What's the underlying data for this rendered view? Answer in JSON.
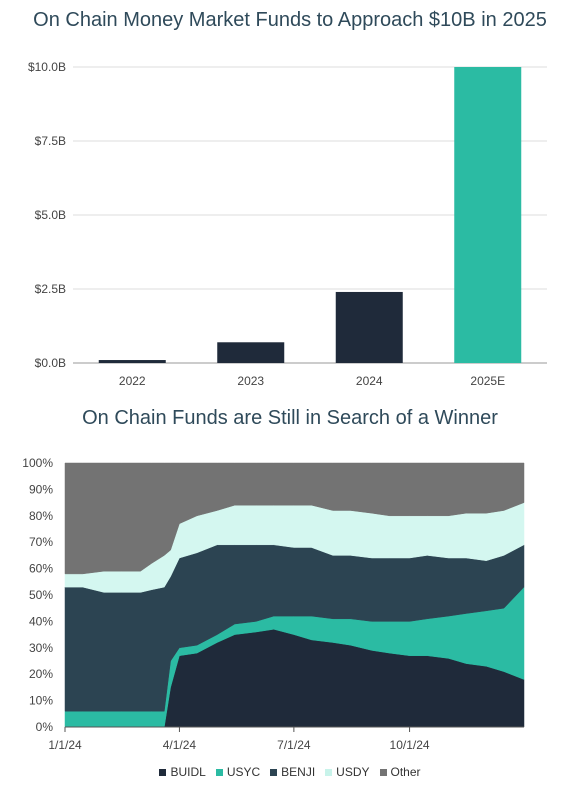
{
  "chart_data": [
    {
      "type": "bar",
      "title": "On Chain Money Market Funds to Approach $10B in 2025",
      "categories": [
        "2022",
        "2023",
        "2024",
        "2025E"
      ],
      "values": [
        0.1,
        0.7,
        2.4,
        10.0
      ],
      "colors": [
        "#1f2a3a",
        "#1f2a3a",
        "#1f2a3a",
        "#2bbba3"
      ],
      "yticks": [
        "$0.0B",
        "$2.5B",
        "$5.0B",
        "$7.5B",
        "$10.0B"
      ],
      "ytick_values": [
        0,
        2.5,
        5,
        7.5,
        10
      ],
      "ylim": [
        0,
        10
      ],
      "grid": true
    },
    {
      "type": "area",
      "stacked": true,
      "percent": true,
      "title": "On Chain Funds are Still in Search of a Winner",
      "x": [
        "2024-01-01",
        "2024-01-15",
        "2024-02-01",
        "2024-02-15",
        "2024-03-01",
        "2024-03-10",
        "2024-03-20",
        "2024-03-25",
        "2024-04-01",
        "2024-04-15",
        "2024-05-01",
        "2024-05-15",
        "2024-06-01",
        "2024-06-15",
        "2024-07-01",
        "2024-07-15",
        "2024-08-01",
        "2024-08-15",
        "2024-09-01",
        "2024-09-15",
        "2024-10-01",
        "2024-10-15",
        "2024-11-01",
        "2024-11-15",
        "2024-12-01",
        "2024-12-15",
        "2024-12-31"
      ],
      "xticks": [
        "1/1/24",
        "4/1/24",
        "7/1/24",
        "10/1/24"
      ],
      "xtick_dates": [
        "2024-01-01",
        "2024-04-01",
        "2024-07-01",
        "2024-10-01"
      ],
      "yticks": [
        "0%",
        "10%",
        "20%",
        "30%",
        "40%",
        "50%",
        "60%",
        "70%",
        "80%",
        "90%",
        "100%"
      ],
      "ylim": [
        0,
        100
      ],
      "series": [
        {
          "name": "BUIDL",
          "color": "#1f2a3a",
          "values": [
            0,
            0,
            0,
            0,
            0,
            0,
            0,
            15,
            27,
            28,
            32,
            35,
            36,
            37,
            35,
            33,
            32,
            31,
            29,
            28,
            27,
            27,
            26,
            24,
            23,
            21,
            18
          ]
        },
        {
          "name": "USYC",
          "color": "#2bbba3",
          "values": [
            6,
            6,
            6,
            6,
            6,
            6,
            6,
            10,
            3,
            3,
            3,
            4,
            4,
            5,
            7,
            9,
            9,
            10,
            11,
            12,
            13,
            14,
            16,
            19,
            21,
            24,
            35
          ]
        },
        {
          "name": "BENJI",
          "color": "#2c4452",
          "values": [
            47,
            47,
            45,
            45,
            45,
            46,
            47,
            32,
            34,
            35,
            34,
            30,
            29,
            27,
            26,
            26,
            24,
            24,
            24,
            24,
            24,
            24,
            22,
            21,
            19,
            20,
            16
          ]
        },
        {
          "name": "USDY",
          "color": "#d4f7f0",
          "values": [
            5,
            5,
            8,
            8,
            8,
            10,
            12,
            10,
            13,
            14,
            13,
            15,
            15,
            15,
            16,
            16,
            17,
            17,
            17,
            16,
            16,
            15,
            16,
            17,
            18,
            17,
            16
          ]
        },
        {
          "name": "Other",
          "color": "#737373",
          "values": [
            42,
            42,
            41,
            41,
            41,
            38,
            35,
            33,
            23,
            20,
            18,
            16,
            16,
            16,
            16,
            16,
            18,
            18,
            19,
            20,
            20,
            20,
            20,
            19,
            19,
            18,
            15
          ]
        }
      ],
      "legend": "bottom"
    }
  ]
}
